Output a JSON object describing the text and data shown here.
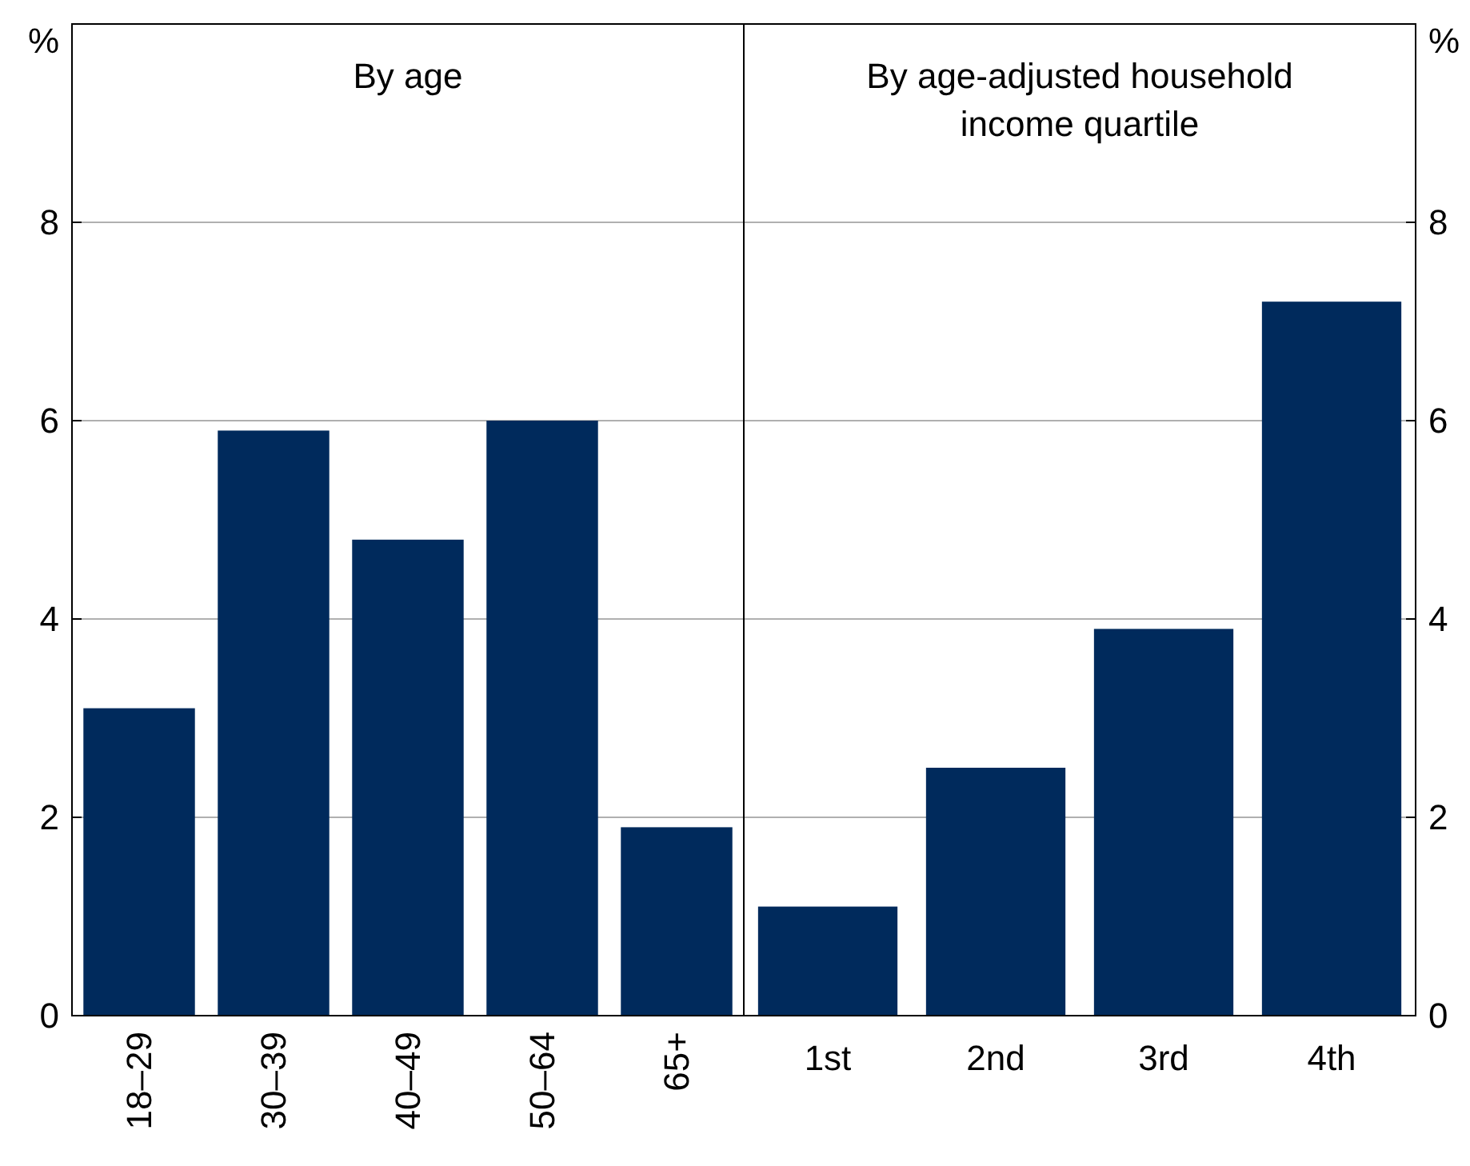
{
  "chart_data": [
    {
      "type": "bar",
      "title": "By age",
      "ylabel": "%",
      "categories": [
        "18–29",
        "30–39",
        "40–49",
        "50–64",
        "65+"
      ],
      "values": [
        3.1,
        5.9,
        4.8,
        6.0,
        1.9
      ],
      "color": "#002a5c",
      "ylim": [
        0,
        10
      ],
      "yticks": [
        0,
        2,
        4,
        6,
        8
      ],
      "grid": "y"
    },
    {
      "type": "bar",
      "title": "By age-adjusted household income quartile",
      "ylabel": "%",
      "categories": [
        "1st",
        "2nd",
        "3rd",
        "4th"
      ],
      "values": [
        1.1,
        2.5,
        3.9,
        7.2
      ],
      "color": "#002a5c",
      "ylim": [
        0,
        10
      ],
      "yticks": [
        0,
        2,
        4,
        6,
        8
      ],
      "grid": "y"
    }
  ]
}
